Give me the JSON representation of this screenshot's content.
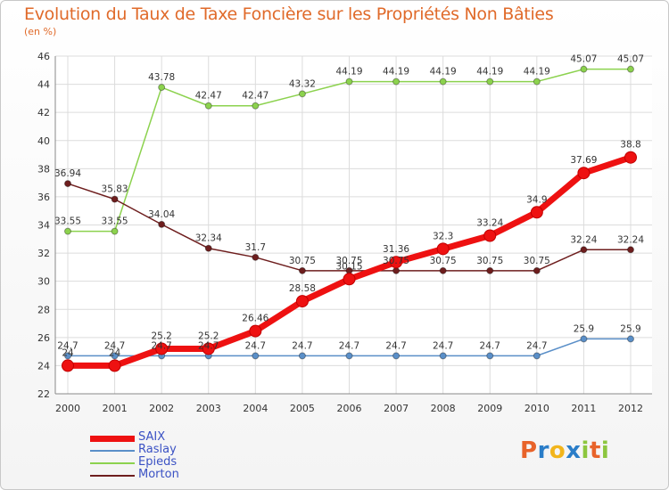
{
  "chart_data": {
    "type": "line",
    "title": "Evolution du Taux de Taxe Foncière sur les Propriétés Non Bâties",
    "unit_label": "(en %)",
    "x": [
      "2000",
      "2001",
      "2002",
      "2003",
      "2004",
      "2005",
      "2006",
      "2007",
      "2008",
      "2009",
      "2010",
      "2011",
      "2012"
    ],
    "ylim": [
      22,
      46
    ],
    "yticks": [
      22,
      24,
      26,
      28,
      30,
      32,
      34,
      36,
      38,
      40,
      42,
      44,
      46
    ],
    "grid": true,
    "legend_position": "bottom-left",
    "series": [
      {
        "name": "SAIX",
        "color": "#ee1111",
        "values": [
          24,
          24,
          25.2,
          25.2,
          26.46,
          28.58,
          30.15,
          31.36,
          32.3,
          33.24,
          34.9,
          37.69,
          38.8
        ],
        "labels": [
          "24",
          "24",
          "25.2",
          "25.2",
          "26.46",
          "28.58",
          "30.15",
          "31.36",
          "32.3",
          "33.24",
          "34.9",
          "37.69",
          "38.8"
        ]
      },
      {
        "name": "Raslay",
        "color": "#5a8fc8",
        "values": [
          24.7,
          24.7,
          24.7,
          24.7,
          24.7,
          24.7,
          24.7,
          24.7,
          24.7,
          24.7,
          24.7,
          25.9,
          25.9
        ],
        "labels": [
          "24.7",
          "24.7",
          "24.7",
          "24.7",
          "24.7",
          "24.7",
          "24.7",
          "24.7",
          "24.7",
          "24.7",
          "24.7",
          "25.9",
          "25.9"
        ]
      },
      {
        "name": "Epieds",
        "color": "#8cd24e",
        "values": [
          33.55,
          33.55,
          43.78,
          42.47,
          42.47,
          43.32,
          44.19,
          44.19,
          44.19,
          44.19,
          44.19,
          45.07,
          45.07
        ],
        "labels": [
          "33.55",
          "33.55",
          "43.78",
          "42.47",
          "42.47",
          "43.32",
          "44.19",
          "44.19",
          "44.19",
          "44.19",
          "44.19",
          "45.07",
          "45.07"
        ]
      },
      {
        "name": "Morton",
        "color": "#6e1e1e",
        "values": [
          36.94,
          35.83,
          34.04,
          32.34,
          31.7,
          30.75,
          30.75,
          30.75,
          30.75,
          30.75,
          30.75,
          32.24,
          32.24
        ],
        "labels": [
          "36.94",
          "35.83",
          "34.04",
          "32.34",
          "31.7",
          "30.75",
          "30.75",
          "30.75",
          "30.75",
          "30.75",
          "30.75",
          "32.24",
          "32.24"
        ]
      }
    ]
  },
  "legend": {
    "items": [
      {
        "name": "SAIX",
        "color": "#ee1111"
      },
      {
        "name": "Raslay",
        "color": "#5a8fc8"
      },
      {
        "name": "Epieds",
        "color": "#8cd24e"
      },
      {
        "name": "Morton",
        "color": "#6e1e1e"
      }
    ]
  },
  "logo": {
    "text": "Proxiti",
    "letters": [
      "P",
      "r",
      "o",
      "x",
      "i",
      "t",
      "i"
    ],
    "colors": [
      "#e8632a",
      "#2a7dc8",
      "#f2b51c",
      "#2a7dc8",
      "#8cc63e",
      "#e8632a",
      "#8cc63e"
    ]
  }
}
